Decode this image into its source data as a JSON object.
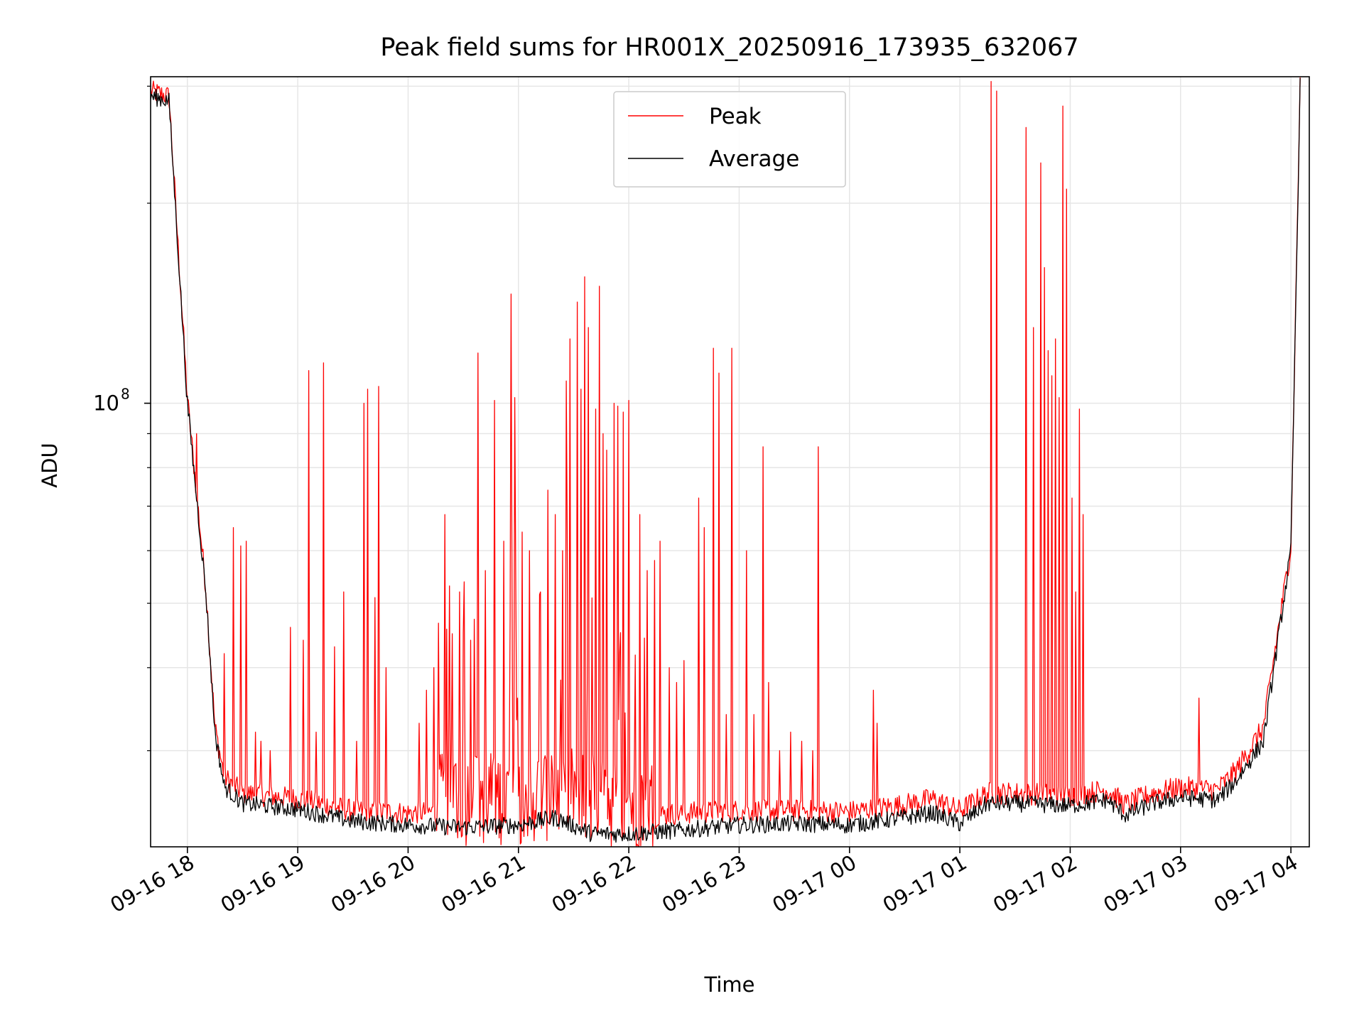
{
  "chart_data": {
    "type": "line",
    "title": "Peak field sums for HR001X_20250916_173935_632067",
    "xlabel": "Time",
    "ylabel": "ADU",
    "yscale": "log",
    "ylim": [
      21500000,
      310000000
    ],
    "xlim": [
      "2025-09-16 17:40",
      "2025-09-17 04:10"
    ],
    "grid": true,
    "legend_position": "upper-center",
    "x_ticks": [
      {
        "t": "2025-09-16 18:00",
        "label": "09-16 18"
      },
      {
        "t": "2025-09-16 19:00",
        "label": "09-16 19"
      },
      {
        "t": "2025-09-16 20:00",
        "label": "09-16 20"
      },
      {
        "t": "2025-09-16 21:00",
        "label": "09-16 21"
      },
      {
        "t": "2025-09-16 22:00",
        "label": "09-16 22"
      },
      {
        "t": "2025-09-16 23:00",
        "label": "09-16 23"
      },
      {
        "t": "2025-09-17 00:00",
        "label": "09-17 00"
      },
      {
        "t": "2025-09-17 01:00",
        "label": "09-17 01"
      },
      {
        "t": "2025-09-17 02:00",
        "label": "09-17 02"
      },
      {
        "t": "2025-09-17 03:00",
        "label": "09-17 03"
      },
      {
        "t": "2025-09-17 04:00",
        "label": "09-17 04"
      }
    ],
    "y_ticks": [
      {
        "v": 100000000,
        "base": "10",
        "exp": "8"
      }
    ],
    "series": [
      {
        "name": "Peak",
        "color": "#ff0000",
        "baseline": {
          "x": [
            "2025-09-16 17:40",
            "2025-09-16 17:50",
            "2025-09-16 18:00",
            "2025-09-16 18:10",
            "2025-09-16 18:15",
            "2025-09-16 18:20",
            "2025-09-16 18:30",
            "2025-09-16 19:00",
            "2025-09-16 19:30",
            "2025-09-16 20:00",
            "2025-09-16 20:30",
            "2025-09-16 21:00",
            "2025-09-16 21:30",
            "2025-09-16 22:00",
            "2025-09-16 22:30",
            "2025-09-16 23:00",
            "2025-09-16 23:30",
            "2025-09-17 00:00",
            "2025-09-17 00:30",
            "2025-09-17 00:45",
            "2025-09-17 01:00",
            "2025-09-17 01:15",
            "2025-09-17 01:30",
            "2025-09-17 02:00",
            "2025-09-17 02:20",
            "2025-09-17 02:30",
            "2025-09-17 02:45",
            "2025-09-17 03:00",
            "2025-09-17 03:20",
            "2025-09-17 03:30",
            "2025-09-17 03:45",
            "2025-09-17 04:00",
            "2025-09-17 04:05"
          ],
          "y": [
            290000000,
            285000000,
            100000000,
            52000000,
            32000000,
            27000000,
            25500000,
            25000000,
            24000000,
            23800000,
            24000000,
            24200000,
            24500000,
            23500000,
            23800000,
            24000000,
            24000000,
            23900000,
            24500000,
            25000000,
            24000000,
            25500000,
            25500000,
            25300000,
            25800000,
            24500000,
            25500000,
            26000000,
            25800000,
            27500000,
            32000000,
            60000000,
            300000000
          ]
        },
        "spikes": [
          {
            "t": "2025-09-16 18:05",
            "v": 90000000
          },
          {
            "t": "2025-09-16 18:25",
            "v": 65000000
          },
          {
            "t": "2025-09-16 18:29",
            "v": 61000000
          },
          {
            "t": "2025-09-16 18:32",
            "v": 62000000
          },
          {
            "t": "2025-09-16 18:20",
            "v": 42000000
          },
          {
            "t": "2025-09-16 18:37",
            "v": 32000000
          },
          {
            "t": "2025-09-16 18:40",
            "v": 31000000
          },
          {
            "t": "2025-09-16 18:45",
            "v": 30000000
          },
          {
            "t": "2025-09-16 18:56",
            "v": 46000000
          },
          {
            "t": "2025-09-16 19:03",
            "v": 44000000
          },
          {
            "t": "2025-09-16 19:06",
            "v": 112000000
          },
          {
            "t": "2025-09-16 19:10",
            "v": 32000000
          },
          {
            "t": "2025-09-16 19:14",
            "v": 115000000
          },
          {
            "t": "2025-09-16 19:20",
            "v": 43000000
          },
          {
            "t": "2025-09-16 19:25",
            "v": 52000000
          },
          {
            "t": "2025-09-16 19:32",
            "v": 31000000
          },
          {
            "t": "2025-09-16 19:36",
            "v": 100000000
          },
          {
            "t": "2025-09-16 19:38",
            "v": 105000000
          },
          {
            "t": "2025-09-16 19:42",
            "v": 51000000
          },
          {
            "t": "2025-09-16 19:44",
            "v": 106000000
          },
          {
            "t": "2025-09-16 19:48",
            "v": 40000000
          },
          {
            "t": "2025-09-16 20:06",
            "v": 33000000
          },
          {
            "t": "2025-09-16 20:10",
            "v": 37000000
          },
          {
            "t": "2025-09-16 20:14",
            "v": 40000000
          },
          {
            "t": "2025-09-16 20:20",
            "v": 68000000
          },
          {
            "t": "2025-09-16 20:24",
            "v": 45000000
          },
          {
            "t": "2025-09-16 20:28",
            "v": 52000000
          },
          {
            "t": "2025-09-16 20:34",
            "v": 44000000
          },
          {
            "t": "2025-09-16 20:38",
            "v": 119000000
          },
          {
            "t": "2025-09-16 20:42",
            "v": 56000000
          },
          {
            "t": "2025-09-16 20:47",
            "v": 101000000
          },
          {
            "t": "2025-09-16 20:52",
            "v": 62000000
          },
          {
            "t": "2025-09-16 20:56",
            "v": 146000000
          },
          {
            "t": "2025-09-16 20:58",
            "v": 102000000
          },
          {
            "t": "2025-09-16 21:02",
            "v": 64000000
          },
          {
            "t": "2025-09-16 21:06",
            "v": 60000000
          },
          {
            "t": "2025-09-16 21:12",
            "v": 52000000
          },
          {
            "t": "2025-09-16 21:16",
            "v": 74000000
          },
          {
            "t": "2025-09-16 21:20",
            "v": 68000000
          },
          {
            "t": "2025-09-16 21:24",
            "v": 60000000
          },
          {
            "t": "2025-09-16 21:26",
            "v": 108000000
          },
          {
            "t": "2025-09-16 21:28",
            "v": 125000000
          },
          {
            "t": "2025-09-16 21:32",
            "v": 142000000
          },
          {
            "t": "2025-09-16 21:34",
            "v": 105000000
          },
          {
            "t": "2025-09-16 21:36",
            "v": 155000000
          },
          {
            "t": "2025-09-16 21:38",
            "v": 130000000
          },
          {
            "t": "2025-09-16 21:42",
            "v": 98000000
          },
          {
            "t": "2025-09-16 21:44",
            "v": 150000000
          },
          {
            "t": "2025-09-16 21:46",
            "v": 90000000
          },
          {
            "t": "2025-09-16 21:48",
            "v": 85000000
          },
          {
            "t": "2025-09-16 21:52",
            "v": 100000000
          },
          {
            "t": "2025-09-16 21:54",
            "v": 99000000
          },
          {
            "t": "2025-09-16 21:57",
            "v": 97000000
          },
          {
            "t": "2025-09-16 22:00",
            "v": 101000000
          },
          {
            "t": "2025-09-16 22:06",
            "v": 68000000
          },
          {
            "t": "2025-09-16 22:10",
            "v": 56000000
          },
          {
            "t": "2025-09-16 22:14",
            "v": 58000000
          },
          {
            "t": "2025-09-16 22:17",
            "v": 62000000
          },
          {
            "t": "2025-09-16 22:22",
            "v": 40000000
          },
          {
            "t": "2025-09-16 22:26",
            "v": 38000000
          },
          {
            "t": "2025-09-16 22:30",
            "v": 41000000
          },
          {
            "t": "2025-09-16 22:38",
            "v": 72000000
          },
          {
            "t": "2025-09-16 22:41",
            "v": 65000000
          },
          {
            "t": "2025-09-16 22:46",
            "v": 121000000
          },
          {
            "t": "2025-09-16 22:49",
            "v": 111000000
          },
          {
            "t": "2025-09-16 22:53",
            "v": 34000000
          },
          {
            "t": "2025-09-16 22:56",
            "v": 121000000
          },
          {
            "t": "2025-09-16 23:04",
            "v": 60000000
          },
          {
            "t": "2025-09-16 23:08",
            "v": 34000000
          },
          {
            "t": "2025-09-16 23:13",
            "v": 86000000
          },
          {
            "t": "2025-09-16 23:16",
            "v": 38000000
          },
          {
            "t": "2025-09-16 23:22",
            "v": 30000000
          },
          {
            "t": "2025-09-16 23:28",
            "v": 32000000
          },
          {
            "t": "2025-09-16 23:34",
            "v": 31000000
          },
          {
            "t": "2025-09-16 23:40",
            "v": 30000000
          },
          {
            "t": "2025-09-16 23:43",
            "v": 86000000
          },
          {
            "t": "2025-09-17 00:13",
            "v": 37000000
          },
          {
            "t": "2025-09-17 00:15",
            "v": 33000000
          },
          {
            "t": "2025-09-17 01:17",
            "v": 305000000
          },
          {
            "t": "2025-09-17 01:20",
            "v": 295000000
          },
          {
            "t": "2025-09-17 01:36",
            "v": 260000000
          },
          {
            "t": "2025-09-17 01:40",
            "v": 130000000
          },
          {
            "t": "2025-09-17 01:44",
            "v": 230000000
          },
          {
            "t": "2025-09-17 01:46",
            "v": 160000000
          },
          {
            "t": "2025-09-17 01:48",
            "v": 120000000
          },
          {
            "t": "2025-09-17 01:50",
            "v": 110000000
          },
          {
            "t": "2025-09-17 01:52",
            "v": 125000000
          },
          {
            "t": "2025-09-17 01:54",
            "v": 102000000
          },
          {
            "t": "2025-09-17 01:56",
            "v": 280000000
          },
          {
            "t": "2025-09-17 01:58",
            "v": 210000000
          },
          {
            "t": "2025-09-17 02:01",
            "v": 72000000
          },
          {
            "t": "2025-09-17 02:03",
            "v": 52000000
          },
          {
            "t": "2025-09-17 02:05",
            "v": 98000000
          },
          {
            "t": "2025-09-17 02:07",
            "v": 68000000
          },
          {
            "t": "2025-09-17 03:10",
            "v": 36000000
          }
        ]
      },
      {
        "name": "Average",
        "color": "#000000",
        "x": [
          "2025-09-16 17:40",
          "2025-09-16 17:50",
          "2025-09-16 18:00",
          "2025-09-16 18:10",
          "2025-09-16 18:15",
          "2025-09-16 18:20",
          "2025-09-16 18:30",
          "2025-09-16 19:00",
          "2025-09-16 19:30",
          "2025-09-16 20:00",
          "2025-09-16 20:30",
          "2025-09-16 21:00",
          "2025-09-16 21:20",
          "2025-09-16 21:40",
          "2025-09-16 22:00",
          "2025-09-16 22:30",
          "2025-09-16 23:00",
          "2025-09-16 23:30",
          "2025-09-17 00:00",
          "2025-09-17 00:30",
          "2025-09-17 00:45",
          "2025-09-17 01:00",
          "2025-09-17 01:15",
          "2025-09-17 01:30",
          "2025-09-17 02:00",
          "2025-09-17 02:20",
          "2025-09-17 02:30",
          "2025-09-17 02:45",
          "2025-09-17 03:00",
          "2025-09-17 03:20",
          "2025-09-17 03:30",
          "2025-09-17 03:45",
          "2025-09-17 04:00",
          "2025-09-17 04:05"
        ],
        "y": [
          290000000,
          285000000,
          100000000,
          52000000,
          32000000,
          26500000,
          25000000,
          24500000,
          23500000,
          23200000,
          23000000,
          23200000,
          23800000,
          22500000,
          22500000,
          22800000,
          23200000,
          23300000,
          23200000,
          23800000,
          24200000,
          23300000,
          25000000,
          25000000,
          24800000,
          25300000,
          24000000,
          25000000,
          25500000,
          25300000,
          27000000,
          31000000,
          60000000,
          300000000
        ]
      }
    ]
  }
}
